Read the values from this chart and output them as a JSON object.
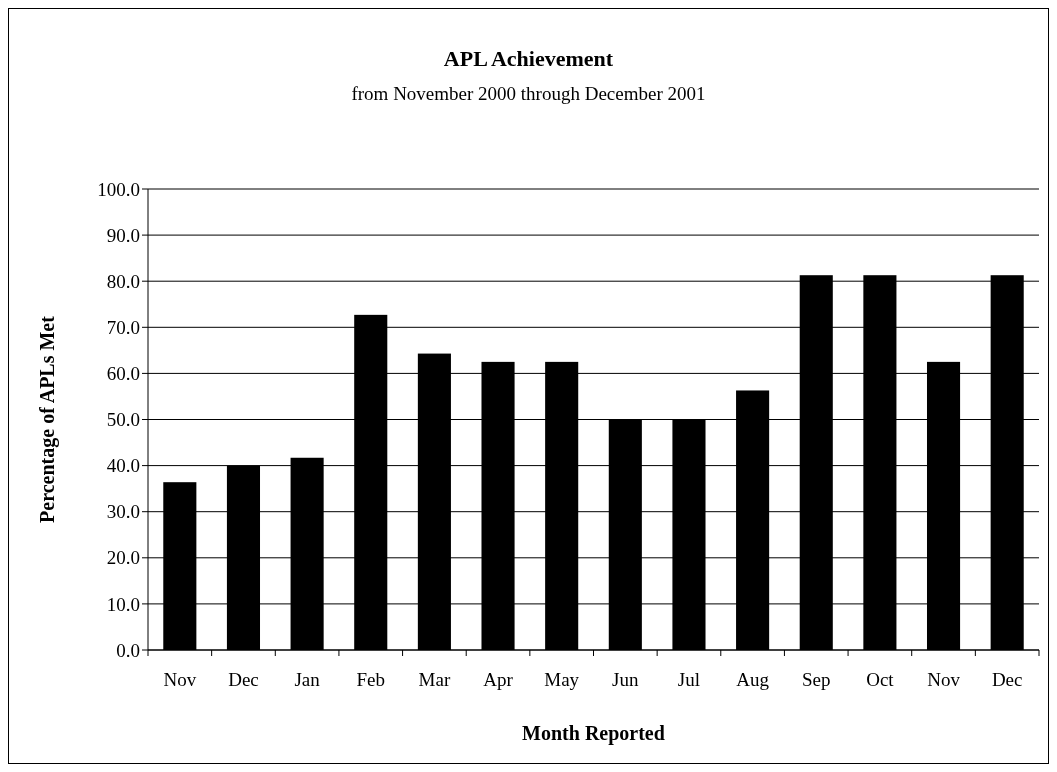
{
  "chart_data": {
    "type": "bar",
    "title": "APL Achievement",
    "subtitle": "from November 2000 through December 2001",
    "xlabel": "Month Reported",
    "ylabel": "Percentage of APLs Met",
    "categories": [
      "Nov",
      "Dec",
      "Jan",
      "Feb",
      "Mar",
      "Apr",
      "May",
      "Jun",
      "Jul",
      "Aug",
      "Sep",
      "Oct",
      "Nov",
      "Dec"
    ],
    "values": [
      36.4,
      40.0,
      41.7,
      72.7,
      64.3,
      62.5,
      62.5,
      50.0,
      50.0,
      56.3,
      81.3,
      81.3,
      62.5,
      81.3
    ],
    "color": "#000000",
    "ylim": [
      0,
      100
    ],
    "yticks": [
      {
        "value": 0,
        "label": "0.0"
      },
      {
        "value": 10,
        "label": "10.0"
      },
      {
        "value": 20,
        "label": "20.0"
      },
      {
        "value": 30,
        "label": "30.0"
      },
      {
        "value": 40,
        "label": "40.0"
      },
      {
        "value": 50,
        "label": "50.0"
      },
      {
        "value": 60,
        "label": "60.0"
      },
      {
        "value": 70,
        "label": "70.0"
      },
      {
        "value": 80,
        "label": "80.0"
      },
      {
        "value": 90,
        "label": "90.0"
      },
      {
        "value": 100,
        "label": "100.0"
      }
    ],
    "grid": "y"
  }
}
